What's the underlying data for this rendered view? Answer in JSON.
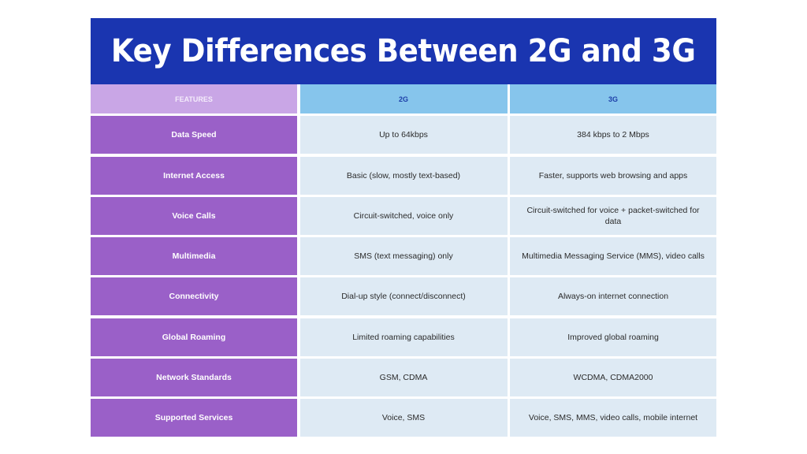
{
  "title": "Key Differences Between 2G and 3G",
  "colors": {
    "title_bg": "#1a35b0",
    "feature_header_bg": "#c9a6e6",
    "generation_header_bg": "#86c5ec",
    "generation_header_text": "#1d3fa8",
    "feature_cell_bg": "#9a60c8",
    "value_cell_bg": "#deeaf4"
  },
  "table": {
    "headers": [
      "FEATURES",
      "2G",
      "3G"
    ],
    "rows": [
      {
        "feature": "Data Speed",
        "g2": "Up to 64kbps",
        "g3": "384 kbps to 2 Mbps"
      },
      {
        "feature": "Internet Access",
        "g2": "Basic (slow, mostly text-based)",
        "g3": "Faster, supports web browsing and apps"
      },
      {
        "feature": "Voice Calls",
        "g2": "Circuit-switched, voice only",
        "g3": "Circuit-switched for voice + packet-switched for data"
      },
      {
        "feature": "Multimedia",
        "g2": "SMS (text messaging) only",
        "g3": "Multimedia Messaging Service (MMS), video calls"
      },
      {
        "feature": "Connectivity",
        "g2": "Dial-up style (connect/disconnect)",
        "g3": "Always-on internet connection"
      },
      {
        "feature": "Global Roaming",
        "g2": "Limited roaming capabilities",
        "g3": "Improved global roaming"
      },
      {
        "feature": "Network Standards",
        "g2": "GSM, CDMA",
        "g3": "WCDMA, CDMA2000"
      },
      {
        "feature": "Supported Services",
        "g2": "Voice, SMS",
        "g3": "Voice, SMS, MMS, video calls, mobile internet"
      }
    ]
  }
}
